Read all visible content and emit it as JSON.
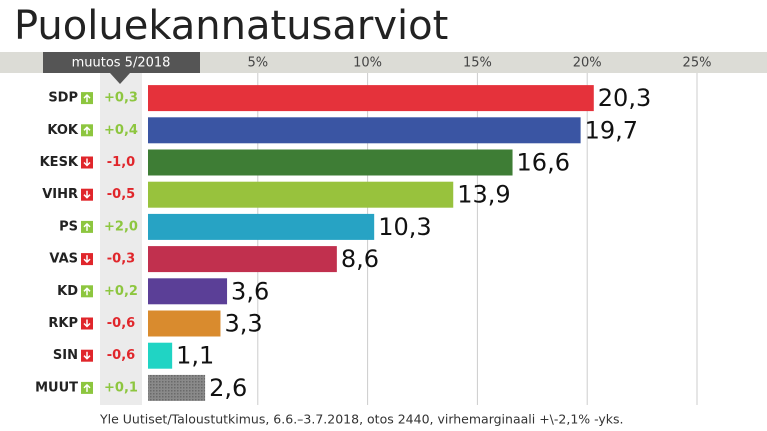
{
  "chart_data": {
    "type": "bar",
    "orientation": "horizontal",
    "title": "Puoluekannatusarviot",
    "change_title": "muutos 5/2018",
    "categories": [
      "SDP",
      "KOK",
      "KESK",
      "VIHR",
      "PS",
      "VAS",
      "KD",
      "RKP",
      "SIN",
      "MUUT"
    ],
    "values": [
      20.3,
      19.7,
      16.6,
      13.9,
      10.3,
      8.6,
      3.6,
      3.3,
      1.1,
      2.6
    ],
    "value_labels": [
      "20,3",
      "19,7",
      "16,6",
      "13,9",
      "10,3",
      "8,6",
      "3,6",
      "3,3",
      "1,1",
      "2,6"
    ],
    "changes": [
      0.3,
      0.4,
      -1.0,
      -0.5,
      2.0,
      -0.3,
      0.2,
      -0.6,
      -0.6,
      0.1
    ],
    "change_labels": [
      "+0,3",
      "+0,4",
      "-1,0",
      "-0,5",
      "+2,0",
      "-0,3",
      "+0,2",
      "-0,6",
      "-0,6",
      "+0,1"
    ],
    "colors": [
      "#e5323b",
      "#3a55a3",
      "#3e7d35",
      "#98c23d",
      "#27a3c4",
      "#c1304e",
      "#5b3f97",
      "#d98b2e",
      "#20d4c4",
      "#7f7f7f"
    ],
    "xlim": [
      0,
      25
    ],
    "xticks": [
      {
        "value": 5,
        "label": "5%"
      },
      {
        "value": 10,
        "label": "10%"
      },
      {
        "value": 15,
        "label": "15%"
      },
      {
        "value": 20,
        "label": "20%"
      },
      {
        "value": 25,
        "label": "25%"
      }
    ],
    "grid": true,
    "source": "Yle Uutiset/Taloustutkimus, 6.6.–3.7.2018, otos 2440, virhemarginaali +\\-2,1% -yks."
  }
}
